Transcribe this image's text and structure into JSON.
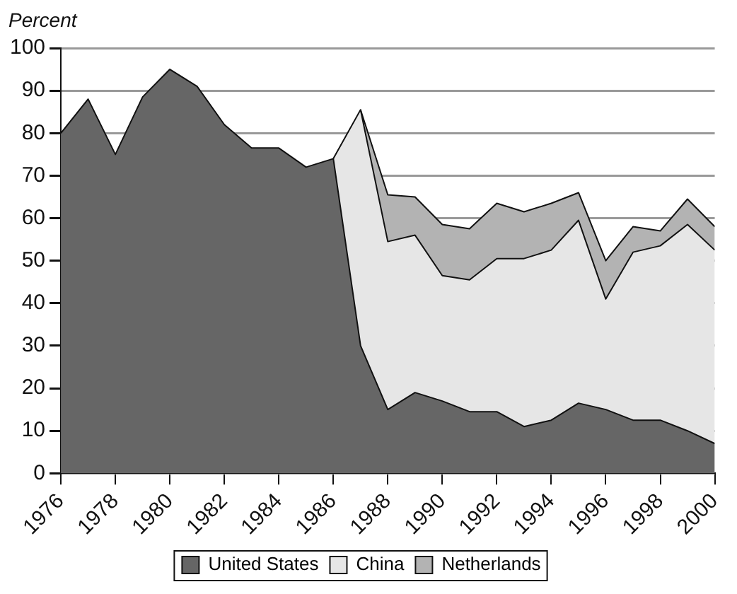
{
  "chart_data": {
    "type": "area",
    "stacked": true,
    "ylabel": "Percent",
    "x": [
      1976,
      1977,
      1978,
      1979,
      1980,
      1981,
      1982,
      1983,
      1984,
      1985,
      1986,
      1987,
      1988,
      1989,
      1990,
      1991,
      1992,
      1993,
      1994,
      1995,
      1996,
      1997,
      1998,
      1999,
      2000
    ],
    "xlim": [
      1976,
      2000
    ],
    "xticks": [
      1976,
      1978,
      1980,
      1982,
      1984,
      1986,
      1988,
      1990,
      1992,
      1994,
      1996,
      1998,
      2000
    ],
    "ylim": [
      0,
      100
    ],
    "yticks": [
      0,
      10,
      20,
      30,
      40,
      50,
      60,
      70,
      80,
      90,
      100
    ],
    "series": [
      {
        "name": "United States",
        "color": "#666666",
        "values": [
          80,
          88,
          75,
          88.5,
          95,
          91,
          82,
          76.5,
          76.5,
          72,
          74,
          30,
          15,
          19,
          17,
          14.5,
          14.5,
          11,
          12.5,
          16.5,
          15,
          12.5,
          12.5,
          10,
          7
        ]
      },
      {
        "name": "China",
        "color": "#e6e6e6",
        "values": [
          null,
          null,
          null,
          null,
          null,
          null,
          null,
          null,
          null,
          null,
          0,
          55.5,
          39.5,
          37,
          29.5,
          31,
          36,
          39.5,
          40,
          43,
          26,
          39.5,
          41,
          48.5,
          45.5
        ]
      },
      {
        "name": "Netherlands",
        "color": "#b3b3b3",
        "values": [
          null,
          null,
          null,
          null,
          null,
          null,
          null,
          null,
          null,
          null,
          null,
          0,
          11,
          9,
          12,
          12,
          13,
          11,
          11,
          6.5,
          9,
          6,
          3.5,
          6,
          5.5
        ]
      }
    ],
    "grid": "y",
    "legend": "bottom",
    "marker": "none",
    "line_style": "solid"
  }
}
